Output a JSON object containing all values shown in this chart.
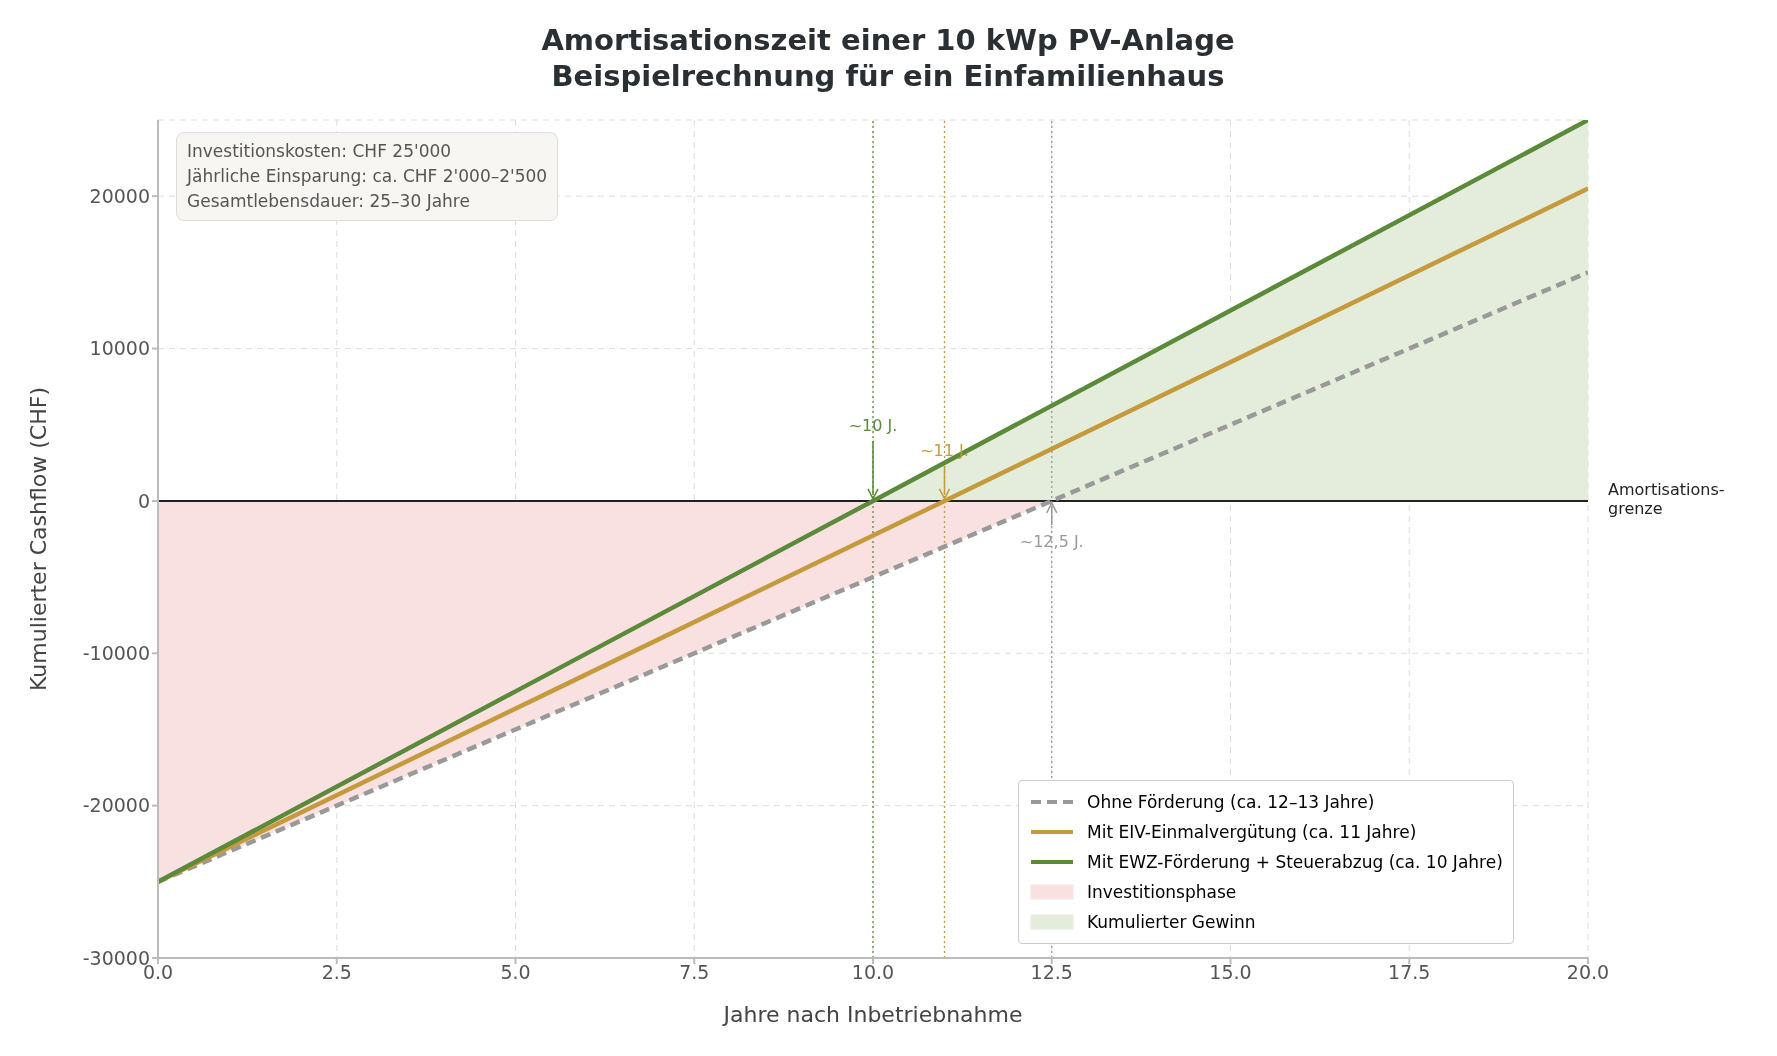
{
  "chart_data": {
    "type": "line",
    "title": "Amortisationszeit einer 10 kWp PV-Anlage",
    "subtitle": "Beispielrechnung für ein Einfamilienhaus",
    "xlabel": "Jahre nach Inbetriebnahme",
    "ylabel": "Kumulierter Cashflow (CHF)",
    "series": [
      {
        "name": "Ohne Förderung (ca. 12–13 Jahre)",
        "color": "#999999",
        "line_style": "dashed",
        "x": [
          0,
          5,
          10,
          12.5,
          15,
          20
        ],
        "values": [
          -25000,
          -15000,
          -5000,
          0,
          5000,
          15000
        ]
      },
      {
        "name": "Mit EIV-Einmalvergütung (ca. 11 Jahre)",
        "color": "#c49a3c",
        "line_style": "solid",
        "x": [
          0,
          5.5,
          11,
          20
        ],
        "values": [
          -25000,
          -12500,
          0,
          20500
        ]
      },
      {
        "name": "Mit EWZ-Förderung + Steuerabzug (ca. 10 Jahre)",
        "color": "#5a8a3a",
        "line_style": "solid",
        "x": [
          0,
          5,
          10,
          15,
          20
        ],
        "values": [
          -25000,
          -12500,
          0,
          12500,
          25000
        ]
      },
      {
        "name": "Investitionsphase",
        "type": "area",
        "color": "#f9e1e1",
        "x": [
          0,
          12.5
        ],
        "values": [
          -25000,
          0
        ]
      },
      {
        "name": "Kumulierter Gewinn",
        "type": "area",
        "color": "#e4ecdc",
        "x": [
          10,
          20
        ],
        "values": [
          0,
          25000
        ]
      }
    ],
    "ref_lines": [
      {
        "axis": "y",
        "value": 0,
        "label": "Amortisations-\ngrenze",
        "color": "#222222",
        "line_style": "solid"
      },
      {
        "axis": "x",
        "value": 10,
        "color": "#5a8a3a",
        "line_style": "dotted"
      },
      {
        "axis": "x",
        "value": 11,
        "color": "#c49a3c",
        "line_style": "dotted"
      },
      {
        "axis": "x",
        "value": 12.5,
        "color": "#999999",
        "line_style": "dotted"
      }
    ],
    "annotations": [
      {
        "text": "~10 J.",
        "x": 10,
        "y": 0
      },
      {
        "text": "~11 J.",
        "x": 11,
        "y": 0
      },
      {
        "text": "~12,5 J.",
        "x": 12.5,
        "y": 0
      },
      "Investitionskosten: CHF 25'000\nJährliche Einsparung: ca. CHF 2'000–2'500\nGesamtlebensdauer: 25–30 Jahre"
    ],
    "xlim": [
      0,
      20
    ],
    "xticks": [
      {
        "value": 0,
        "label": "0.0"
      },
      {
        "value": 2.5,
        "label": "2.5"
      },
      {
        "value": 5,
        "label": "5.0"
      },
      {
        "value": 7.5,
        "label": "7.5"
      },
      {
        "value": 10,
        "label": "10.0"
      },
      {
        "value": 12.5,
        "label": "12.5"
      },
      {
        "value": 15,
        "label": "15.0"
      },
      {
        "value": 17.5,
        "label": "17.5"
      },
      {
        "value": 20,
        "label": "20.0"
      }
    ],
    "ylim": [
      -30000,
      25000
    ],
    "yticks": [
      -30000,
      -20000,
      -10000,
      0,
      10000,
      20000
    ],
    "grid": true,
    "legend": "bottom right"
  }
}
